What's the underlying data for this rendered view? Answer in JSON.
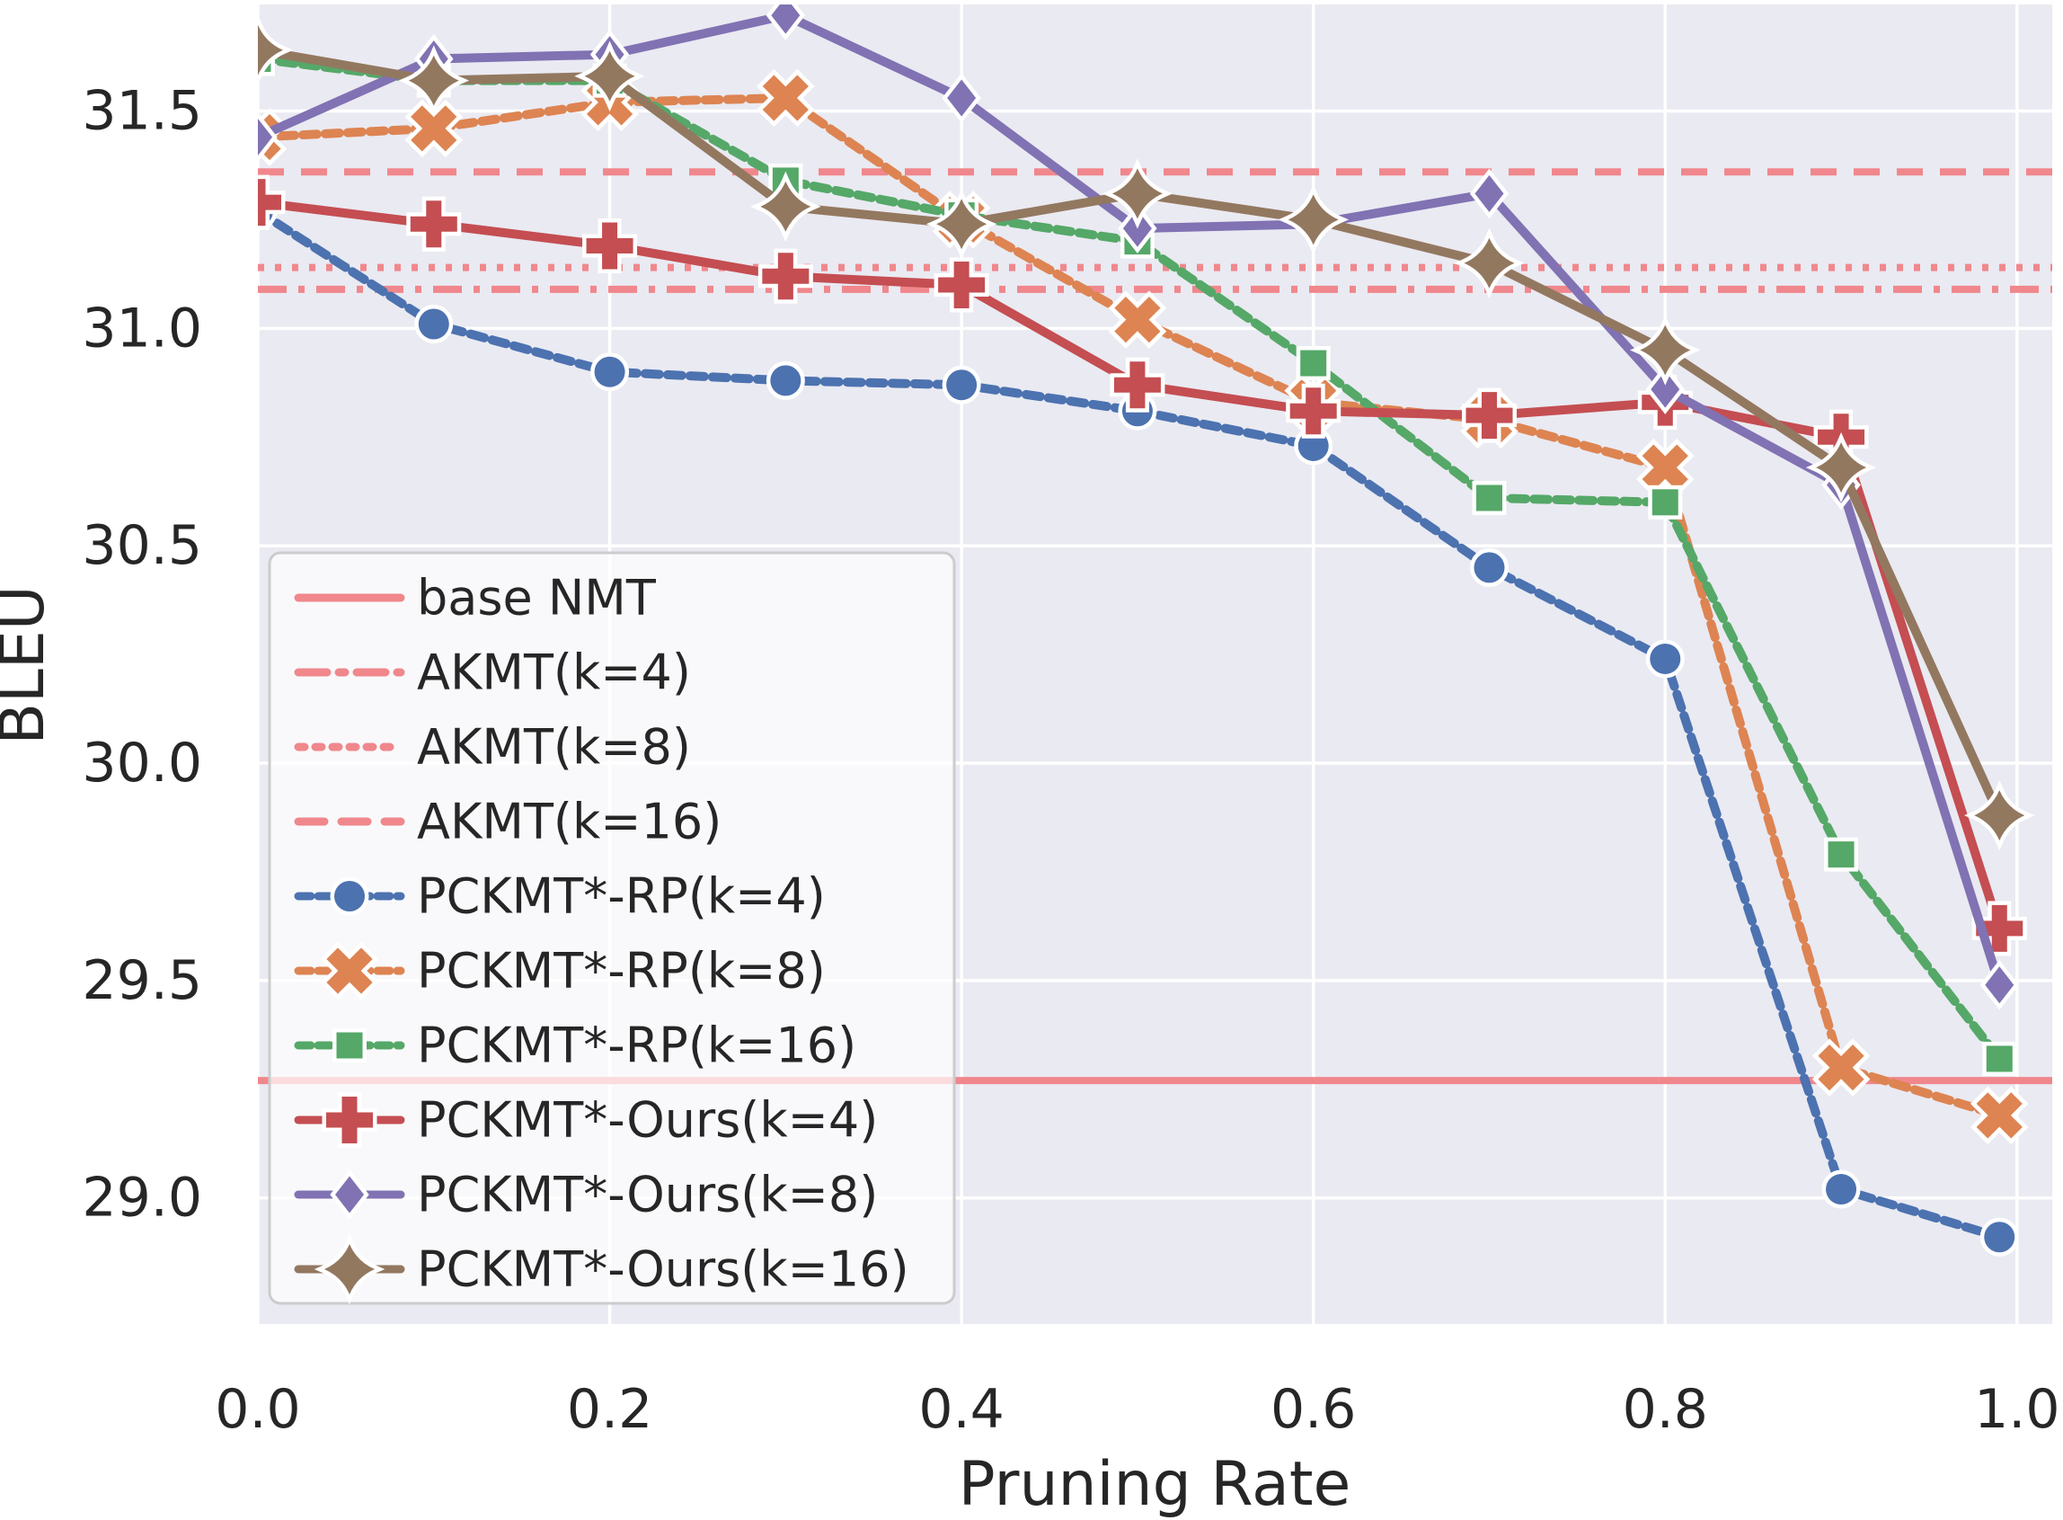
{
  "chart_data": {
    "type": "line",
    "title": "",
    "xlabel": "Pruning Rate",
    "ylabel": "BLEU",
    "x_tick_labels": [
      "0.0",
      "0.2",
      "0.4",
      "0.6",
      "0.8",
      "1.0"
    ],
    "x_tick_values": [
      0,
      0.2,
      0.4,
      0.6,
      0.8,
      1.0
    ],
    "y_tick_labels": [
      "31.5",
      "31.0",
      "30.5",
      "30.0",
      "29.5",
      "29.0"
    ],
    "y_tick_values": [
      31.5,
      31.0,
      30.5,
      30.0,
      29.5,
      29.0
    ],
    "xlim": [
      0,
      1.02
    ],
    "ylim": [
      28.71,
      31.745
    ],
    "grid": true,
    "legend_position": "lower left",
    "x": [
      0.0,
      0.1,
      0.2,
      0.3,
      0.4,
      0.5,
      0.6,
      0.7,
      0.8,
      0.9,
      0.99
    ],
    "baselines": [
      {
        "name": "base NMT",
        "value": 29.27,
        "style": "solid"
      },
      {
        "name": "AKMT(k=4)",
        "value": 31.09,
        "style": "dashdot"
      },
      {
        "name": "AKMT(k=8)",
        "value": 31.14,
        "style": "dotted"
      },
      {
        "name": "AKMT(k=16)",
        "value": 31.36,
        "style": "dashed"
      }
    ],
    "series": [
      {
        "name": "PCKMT*-RP(k=4)",
        "color": "#4c72b0",
        "line": "dashed",
        "marker": "circle",
        "values": [
          31.27,
          31.01,
          30.9,
          30.88,
          30.87,
          30.81,
          30.73,
          30.45,
          30.24,
          29.02,
          28.91
        ]
      },
      {
        "name": "PCKMT*-RP(k=8)",
        "color": "#dd8452",
        "line": "dashed",
        "marker": "x",
        "values": [
          31.44,
          31.46,
          31.52,
          31.53,
          31.25,
          31.02,
          30.83,
          30.79,
          30.68,
          29.3,
          29.19
        ]
      },
      {
        "name": "PCKMT*-RP(k=16)",
        "color": "#55a868",
        "line": "dashed",
        "marker": "square",
        "values": [
          31.62,
          31.57,
          31.57,
          31.34,
          31.26,
          31.2,
          30.92,
          30.61,
          30.6,
          29.79,
          29.32
        ]
      },
      {
        "name": "PCKMT*-Ours(k=4)",
        "color": "#c44e52",
        "line": "solid",
        "marker": "plus",
        "values": [
          31.29,
          31.24,
          31.19,
          31.12,
          31.1,
          30.87,
          30.81,
          30.8,
          30.83,
          30.75,
          29.62
        ]
      },
      {
        "name": "PCKMT*-Ours(k=8)",
        "color": "#8172b3",
        "line": "solid",
        "marker": "diamond",
        "values": [
          31.44,
          31.62,
          31.63,
          31.72,
          31.53,
          31.23,
          31.24,
          31.31,
          30.86,
          30.64,
          29.49
        ]
      },
      {
        "name": "PCKMT*-Ours(k=16)",
        "color": "#937860",
        "line": "solid",
        "marker": "star4",
        "values": [
          31.64,
          31.57,
          31.58,
          31.28,
          31.24,
          31.31,
          31.25,
          31.15,
          30.95,
          30.68,
          29.88
        ]
      }
    ]
  },
  "style": {
    "figure_bg": "#ffffff",
    "plot_bg": "#eaeaf2",
    "grid_color": "#ffffff",
    "text_color": "#262626",
    "baseline_color": "#f0878c",
    "marker_edge": "#ffffff",
    "legend_fill": "rgba(255,255,255,0.70)",
    "legend_border": "#cccccc"
  }
}
